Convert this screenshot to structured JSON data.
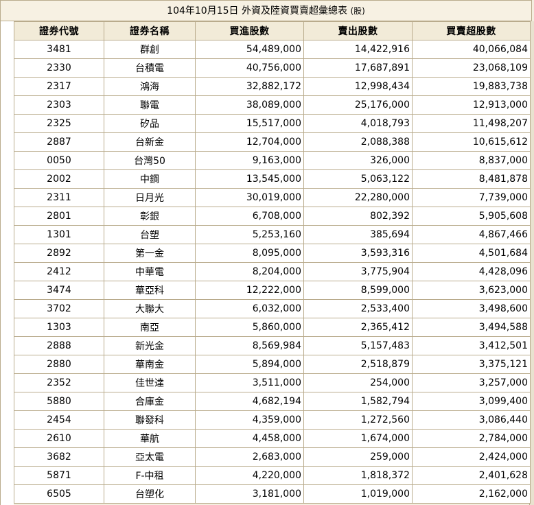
{
  "page": {
    "title": "104年10月15日 外資及陸資買賣超彙總表",
    "unit": "(股)"
  },
  "table": {
    "headers": [
      "證券代號",
      "證券名稱",
      "買進股數",
      "賣出股數",
      "買賣超股數"
    ],
    "rows": [
      [
        "3481",
        "群創",
        "54,489,000",
        "14,422,916",
        "40,066,084"
      ],
      [
        "2330",
        "台積電",
        "40,756,000",
        "17,687,891",
        "23,068,109"
      ],
      [
        "2317",
        "鴻海",
        "32,882,172",
        "12,998,434",
        "19,883,738"
      ],
      [
        "2303",
        "聯電",
        "38,089,000",
        "25,176,000",
        "12,913,000"
      ],
      [
        "2325",
        "矽品",
        "15,517,000",
        "4,018,793",
        "11,498,207"
      ],
      [
        "2887",
        "台新金",
        "12,704,000",
        "2,088,388",
        "10,615,612"
      ],
      [
        "0050",
        "台灣50",
        "9,163,000",
        "326,000",
        "8,837,000"
      ],
      [
        "2002",
        "中鋼",
        "13,545,000",
        "5,063,122",
        "8,481,878"
      ],
      [
        "2311",
        "日月光",
        "30,019,000",
        "22,280,000",
        "7,739,000"
      ],
      [
        "2801",
        "彰銀",
        "6,708,000",
        "802,392",
        "5,905,608"
      ],
      [
        "1301",
        "台塑",
        "5,253,160",
        "385,694",
        "4,867,466"
      ],
      [
        "2892",
        "第一金",
        "8,095,000",
        "3,593,316",
        "4,501,684"
      ],
      [
        "2412",
        "中華電",
        "8,204,000",
        "3,775,904",
        "4,428,096"
      ],
      [
        "3474",
        "華亞科",
        "12,222,000",
        "8,599,000",
        "3,623,000"
      ],
      [
        "3702",
        "大聯大",
        "6,032,000",
        "2,533,400",
        "3,498,600"
      ],
      [
        "1303",
        "南亞",
        "5,860,000",
        "2,365,412",
        "3,494,588"
      ],
      [
        "2888",
        "新光金",
        "8,569,984",
        "5,157,483",
        "3,412,501"
      ],
      [
        "2880",
        "華南金",
        "5,894,000",
        "2,518,879",
        "3,375,121"
      ],
      [
        "2352",
        "佳世達",
        "3,511,000",
        "254,000",
        "3,257,000"
      ],
      [
        "5880",
        "合庫金",
        "4,682,194",
        "1,582,794",
        "3,099,400"
      ],
      [
        "2454",
        "聯發科",
        "4,359,000",
        "1,272,560",
        "3,086,440"
      ],
      [
        "2610",
        "華航",
        "4,458,000",
        "1,674,000",
        "2,784,000"
      ],
      [
        "3682",
        "亞太電",
        "2,683,000",
        "259,000",
        "2,424,000"
      ],
      [
        "5871",
        "F-中租",
        "4,220,000",
        "1,818,372",
        "2,401,628"
      ],
      [
        "6505",
        "台塑化",
        "3,181,000",
        "1,019,000",
        "2,162,000"
      ]
    ]
  }
}
